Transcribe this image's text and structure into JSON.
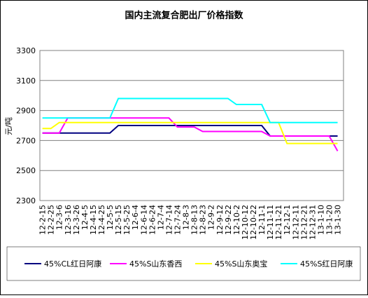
{
  "chart_data": {
    "type": "line",
    "title": "国内主流复合肥出厂价格指数",
    "y_label": "元/吨",
    "categories": [
      "12-2-15",
      "12-2-25",
      "12-3-6",
      "12-3-16",
      "12-3-26",
      "12-4-5",
      "12-4-15",
      "12-4-25",
      "12-5-5",
      "12-5-15",
      "12-5-25",
      "12-6-4",
      "12-6-14",
      "12-6-24",
      "12-7-4",
      "12-7-14",
      "12-7-24",
      "12-8-3",
      "12-8-13",
      "12-8-23",
      "12-9-2",
      "12-9-12",
      "12-9-22",
      "12-10-2",
      "12-10-12",
      "12-10-22",
      "12-11-1",
      "12-11-11",
      "12-11-21",
      "12-12-1",
      "12-12-11",
      "12-12-21",
      "12-12-31",
      "13-1-10",
      "13-1-20",
      "13-1-30"
    ],
    "series": [
      {
        "name": "45%CL红日阿康",
        "color": "#000080",
        "values": [
          2750,
          2750,
          2750,
          2750,
          2750,
          2750,
          2750,
          2750,
          2750,
          2800,
          2800,
          2800,
          2800,
          2800,
          2800,
          2800,
          2800,
          2800,
          2800,
          2800,
          2800,
          2800,
          2800,
          2800,
          2800,
          2800,
          2800,
          2730,
          2730,
          2730,
          2730,
          2730,
          2730,
          2730,
          2730,
          2730
        ]
      },
      {
        "name": "45%S山东香西",
        "color": "#ff00ff",
        "values": [
          2750,
          2750,
          2750,
          2850,
          2850,
          2850,
          2850,
          2850,
          2850,
          2850,
          2850,
          2850,
          2850,
          2850,
          2850,
          2850,
          2790,
          2790,
          2790,
          2760,
          2760,
          2760,
          2760,
          2760,
          2760,
          2760,
          2760,
          2730,
          2730,
          2730,
          2730,
          2730,
          2730,
          2730,
          2730,
          2630
        ]
      },
      {
        "name": "45%S山东奥宝",
        "color": "#ffff00",
        "values": [
          2780,
          2780,
          2820,
          2820,
          2820,
          2820,
          2820,
          2820,
          2820,
          2820,
          2820,
          2820,
          2820,
          2820,
          2820,
          2820,
          2820,
          2820,
          2820,
          2820,
          2820,
          2820,
          2820,
          2820,
          2820,
          2820,
          2820,
          2820,
          2820,
          2680,
          2680,
          2680,
          2680,
          2680,
          2680,
          2680
        ]
      },
      {
        "name": "45%S红日阿康",
        "color": "#00ffff",
        "values": [
          2850,
          2850,
          2850,
          2850,
          2850,
          2850,
          2850,
          2850,
          2850,
          2980,
          2980,
          2980,
          2980,
          2980,
          2980,
          2980,
          2980,
          2980,
          2980,
          2980,
          2980,
          2980,
          2980,
          2940,
          2940,
          2940,
          2940,
          2820,
          2820,
          2820,
          2820,
          2820,
          2820,
          2820,
          2820,
          2820
        ]
      }
    ],
    "ylim": [
      2300,
      3300
    ],
    "yticks": [
      2300,
      2500,
      2700,
      2900,
      3100,
      3300
    ],
    "grid": true
  }
}
